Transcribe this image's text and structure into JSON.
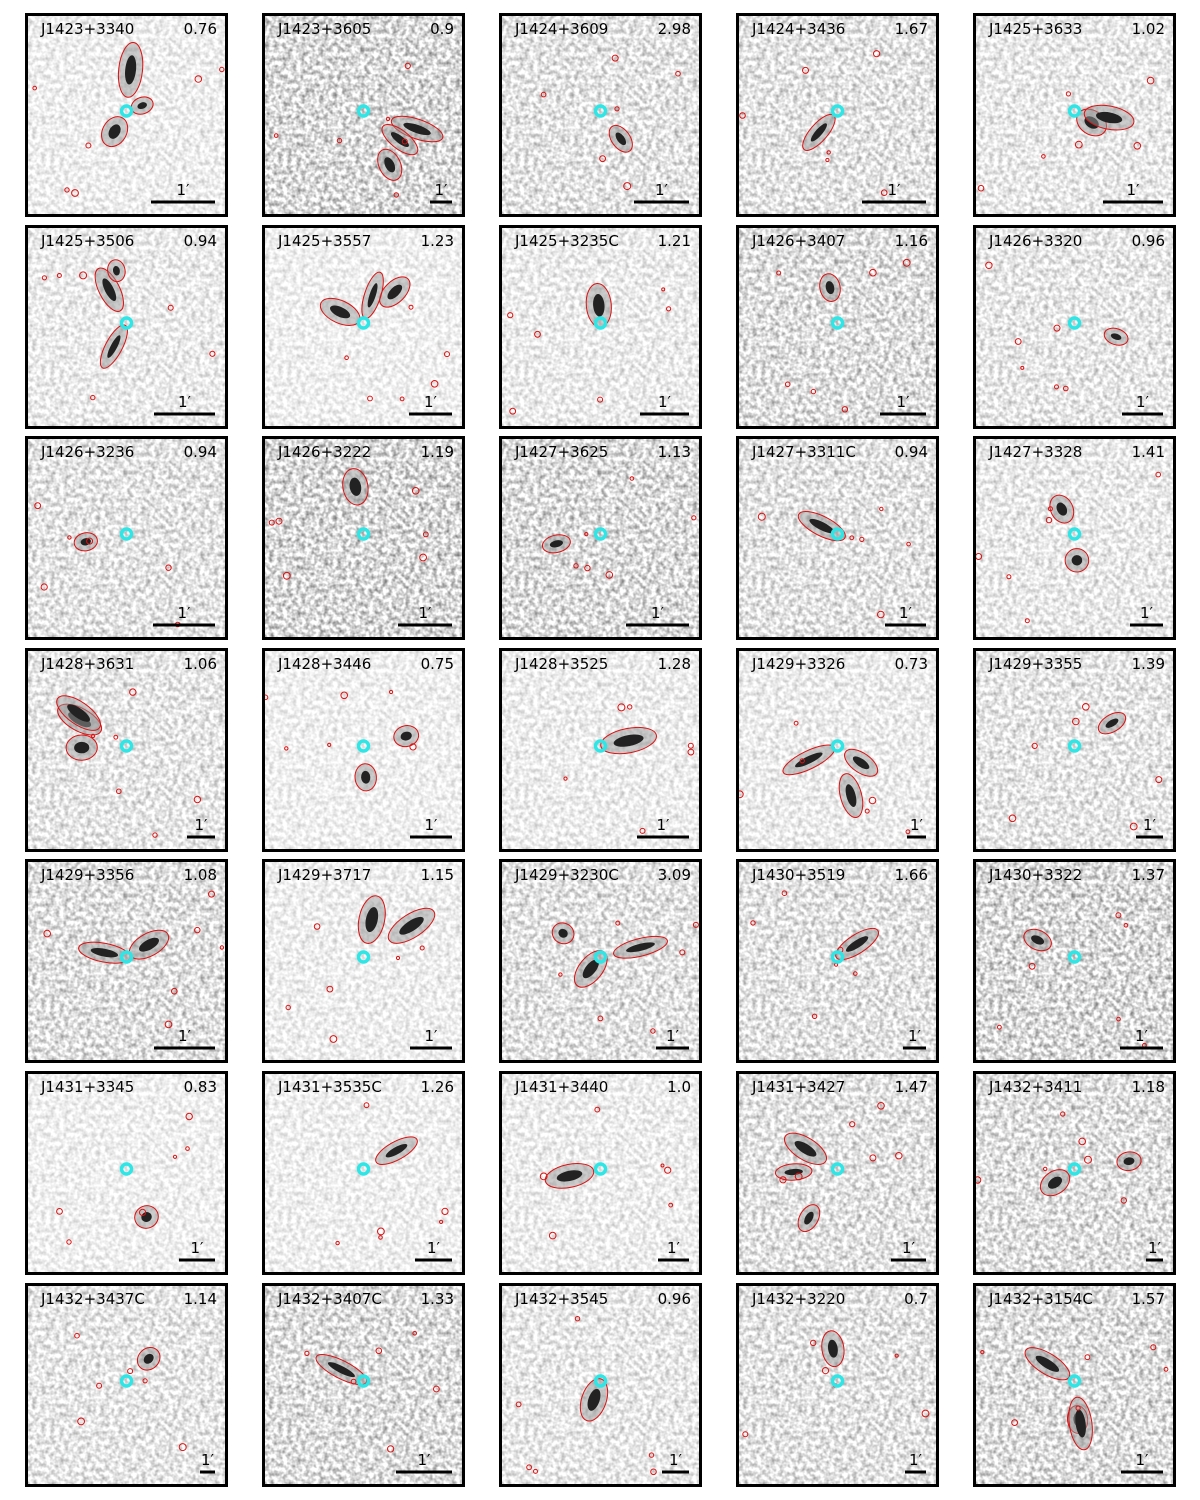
{
  "scale_label": "1′",
  "panels": [
    {
      "name": "J1423+3340",
      "value": "0.76"
    },
    {
      "name": "J1423+3605",
      "value": "0.9"
    },
    {
      "name": "J1424+3609",
      "value": "2.98"
    },
    {
      "name": "J1424+3436",
      "value": "1.67"
    },
    {
      "name": "J1425+3633",
      "value": "1.02"
    },
    {
      "name": "J1425+3506",
      "value": "0.94"
    },
    {
      "name": "J1425+3557",
      "value": "1.23"
    },
    {
      "name": "J1425+3235C",
      "value": "1.21"
    },
    {
      "name": "J1426+3407",
      "value": "1.16"
    },
    {
      "name": "J1426+3320",
      "value": "0.96"
    },
    {
      "name": "J1426+3236",
      "value": "0.94"
    },
    {
      "name": "J1426+3222",
      "value": "1.19"
    },
    {
      "name": "J1427+3625",
      "value": "1.13"
    },
    {
      "name": "J1427+3311C",
      "value": "0.94"
    },
    {
      "name": "J1427+3328",
      "value": "1.41"
    },
    {
      "name": "J1428+3631",
      "value": "1.06"
    },
    {
      "name": "J1428+3446",
      "value": "0.75"
    },
    {
      "name": "J1428+3525",
      "value": "1.28"
    },
    {
      "name": "J1429+3326",
      "value": "0.73"
    },
    {
      "name": "J1429+3355",
      "value": "1.39"
    },
    {
      "name": "J1429+3356",
      "value": "1.08"
    },
    {
      "name": "J1429+3717",
      "value": "1.15"
    },
    {
      "name": "J1429+3230C",
      "value": "3.09"
    },
    {
      "name": "J1430+3519",
      "value": "1.66"
    },
    {
      "name": "J1430+3322",
      "value": "1.37"
    },
    {
      "name": "J1431+3345",
      "value": "0.83"
    },
    {
      "name": "J1431+3535C",
      "value": "1.26"
    },
    {
      "name": "J1431+3440",
      "value": "1.0"
    },
    {
      "name": "J1431+3427",
      "value": "1.47"
    },
    {
      "name": "J1432+3411",
      "value": "1.18"
    },
    {
      "name": "J1432+3437C",
      "value": "1.14"
    },
    {
      "name": "J1432+3407C",
      "value": "1.33"
    },
    {
      "name": "J1432+3545",
      "value": "0.96"
    },
    {
      "name": "J1432+3220",
      "value": "0.7"
    },
    {
      "name": "J1432+3154C",
      "value": "1.57"
    }
  ]
}
